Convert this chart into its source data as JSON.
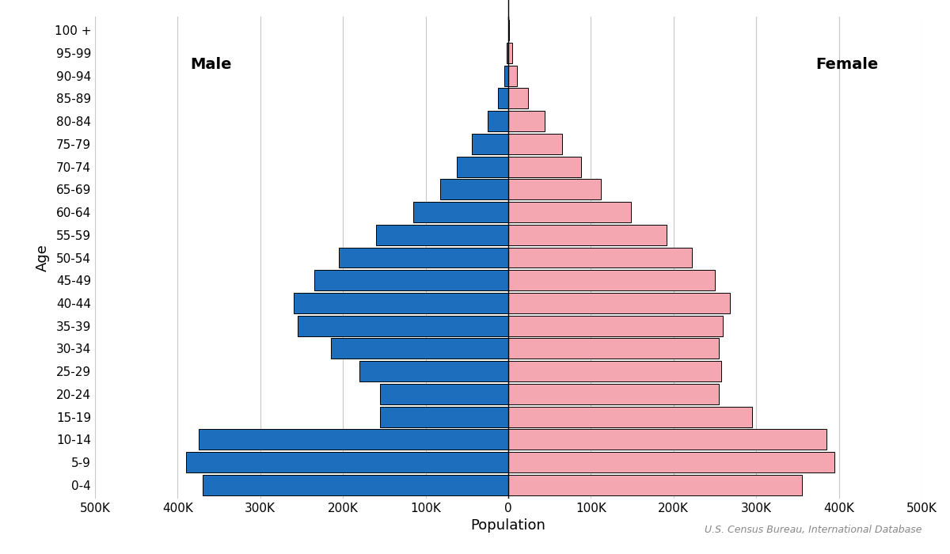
{
  "age_groups": [
    "0-4",
    "5-9",
    "10-14",
    "15-19",
    "20-24",
    "25-29",
    "30-34",
    "35-39",
    "40-44",
    "45-49",
    "50-54",
    "55-59",
    "60-64",
    "65-69",
    "70-74",
    "75-79",
    "80-84",
    "85-89",
    "90-94",
    "95-99",
    "100 +"
  ],
  "male": [
    370000,
    390000,
    375000,
    155000,
    155000,
    180000,
    215000,
    255000,
    260000,
    235000,
    205000,
    160000,
    115000,
    82000,
    62000,
    44000,
    25000,
    12000,
    5000,
    1500,
    400
  ],
  "female": [
    355000,
    395000,
    385000,
    295000,
    255000,
    258000,
    255000,
    260000,
    268000,
    250000,
    222000,
    192000,
    148000,
    112000,
    88000,
    65000,
    44000,
    24000,
    11000,
    4500,
    1200
  ],
  "male_color": "#1e6ebe",
  "female_color": "#f4a7b0",
  "bar_edgecolor": "#000000",
  "bar_linewidth": 0.7,
  "male_label": "Male",
  "female_label": "Female",
  "xlabel": "Population",
  "ylabel": "Age",
  "xlim": 500000,
  "tick_values": [
    0,
    100000,
    200000,
    300000,
    400000,
    500000
  ],
  "tick_labels": [
    "0",
    "100K",
    "200K",
    "300K",
    "400K",
    "500K"
  ],
  "attribution": "U.S. Census Bureau, International Database",
  "background_color": "#ffffff",
  "grid_color": "#c8c8c8",
  "label_fontsize": 13,
  "tick_fontsize": 11,
  "gender_fontsize": 14,
  "attribution_fontsize": 9,
  "bar_height": 0.9
}
